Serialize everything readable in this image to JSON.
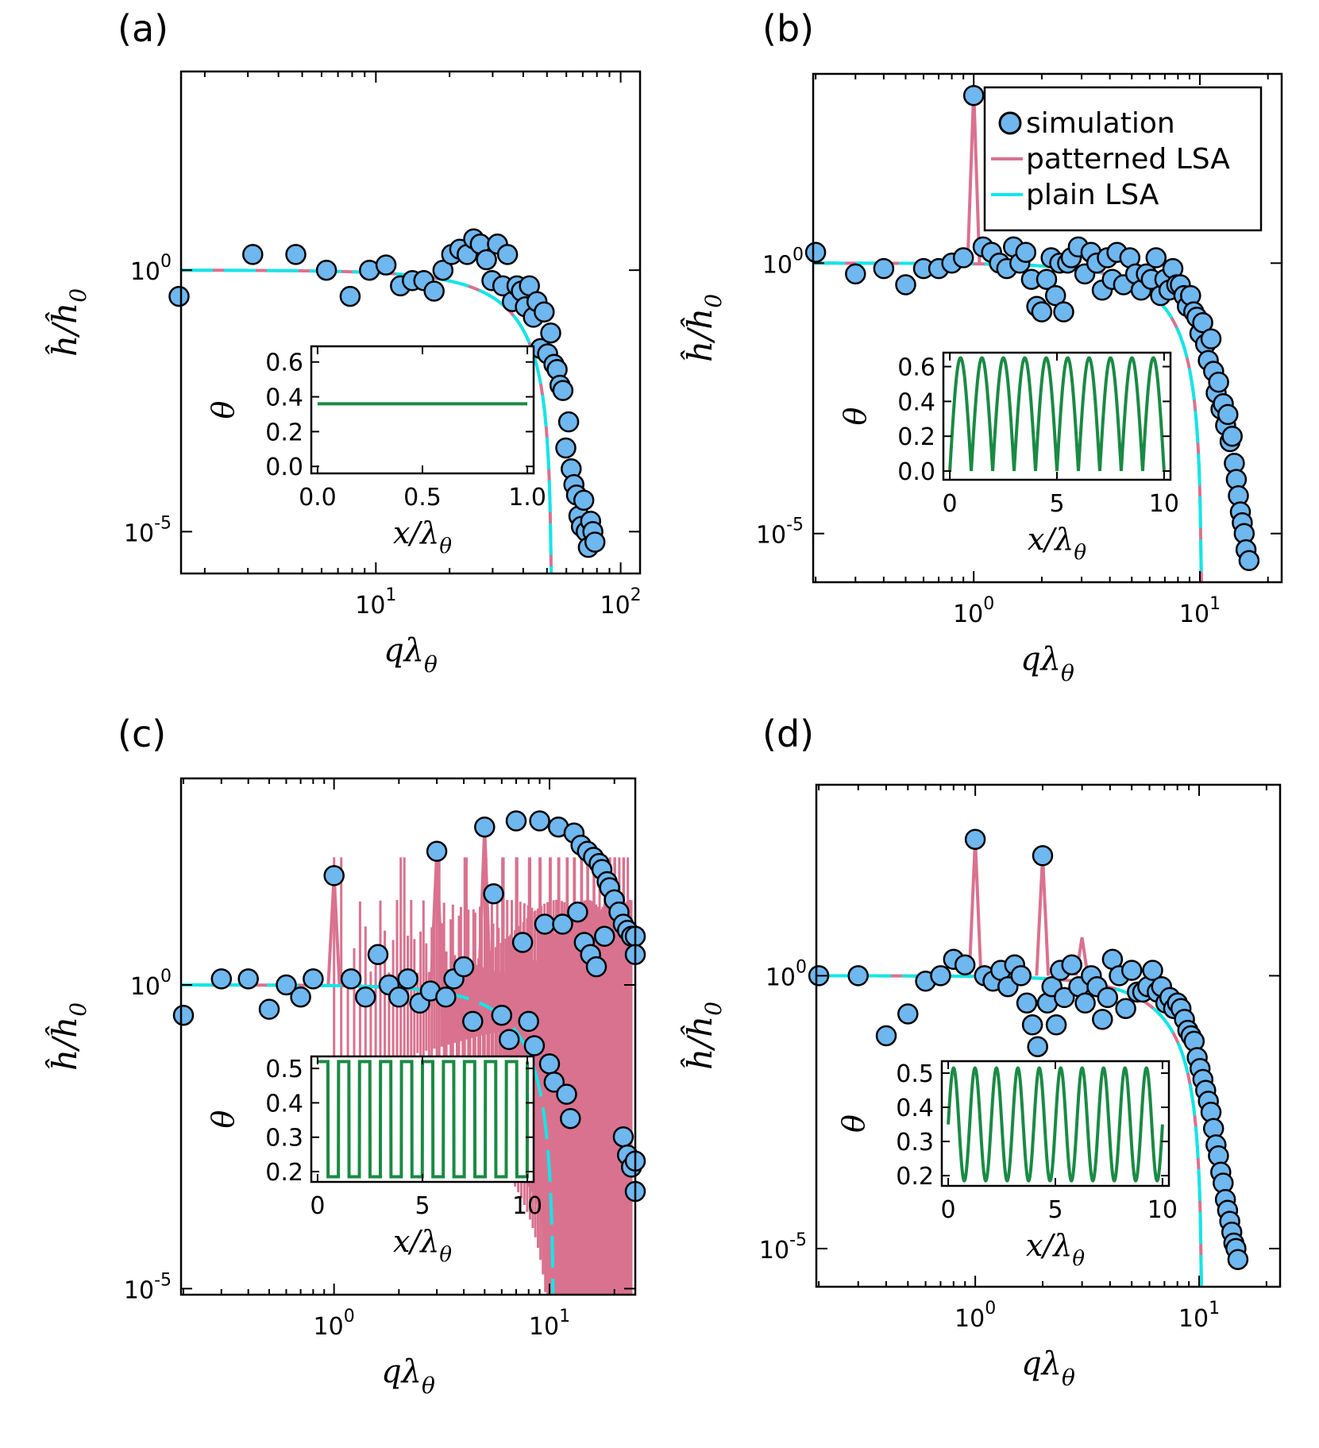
{
  "figure": {
    "panel_labels": [
      "(a)",
      "(b)",
      "(c)",
      "(d)"
    ],
    "legend": {
      "simulation": "simulation",
      "patterned": "patterned LSA",
      "plain": "plain LSA"
    },
    "colors": {
      "marker_fill": "#6fb7ef",
      "patterned": "#d9728f",
      "plain": "#10e7e9",
      "inset_line": "#1a8a44"
    }
  },
  "chart_data": [
    {
      "panel": "(a)",
      "type": "scatter",
      "xscale": "log",
      "yscale": "log",
      "xlabel": "qλ_θ",
      "ylabel": "ĥ/ĥ_0",
      "xlim": [
        1.6,
        120
      ],
      "ylim_log10": [
        -5.8,
        3.8
      ],
      "x_ticks": [
        {
          "v": 10,
          "l": "10^1"
        },
        {
          "v": 100,
          "l": "10^2"
        }
      ],
      "y_ticks": [
        {
          "e": 0,
          "l": "10^0"
        },
        {
          "e": -5,
          "l": "10^-5"
        }
      ],
      "plain_lsa": {
        "qc": 52.3,
        "kind": "plain"
      },
      "patterned_lsa": {
        "qc": 52.3,
        "kind": "plain"
      },
      "simulation_points": [
        [
          1.57,
          -0.5
        ],
        [
          3.14,
          0.3
        ],
        [
          4.71,
          0.3
        ],
        [
          6.28,
          0.0
        ],
        [
          7.85,
          -0.5
        ],
        [
          9.42,
          0.0
        ],
        [
          11.0,
          0.1
        ],
        [
          12.6,
          -0.3
        ],
        [
          14.1,
          -0.2
        ],
        [
          15.7,
          -0.2
        ],
        [
          17.3,
          -0.4
        ],
        [
          18.8,
          0.0
        ],
        [
          20.4,
          0.3
        ],
        [
          22.0,
          0.4
        ],
        [
          23.6,
          0.3
        ],
        [
          25.1,
          0.6
        ],
        [
          26.7,
          0.5
        ],
        [
          28.3,
          0.2
        ],
        [
          29.8,
          -0.2
        ],
        [
          31.4,
          0.5
        ],
        [
          33.0,
          -0.3
        ],
        [
          34.5,
          0.3
        ],
        [
          36.1,
          -0.6
        ],
        [
          37.7,
          -0.3
        ],
        [
          39.3,
          -0.4
        ],
        [
          40.8,
          -0.7
        ],
        [
          42.4,
          -0.3
        ],
        [
          44.0,
          -0.9
        ],
        [
          45.5,
          -0.6
        ],
        [
          47.1,
          -1.5
        ],
        [
          48.7,
          -0.8
        ],
        [
          50.3,
          -1.6
        ],
        [
          51.8,
          -1.2
        ],
        [
          53.4,
          -1.8
        ],
        [
          55.0,
          -1.9
        ],
        [
          56.5,
          -2.2
        ],
        [
          58.1,
          -2.3
        ],
        [
          59.7,
          -3.4
        ],
        [
          61.3,
          -2.9
        ],
        [
          62.8,
          -3.8
        ],
        [
          64.4,
          -4.1
        ],
        [
          66.0,
          -4.3
        ],
        [
          67.5,
          -4.7
        ],
        [
          69.1,
          -4.9
        ],
        [
          70.7,
          -4.4
        ],
        [
          72.3,
          -5.0
        ],
        [
          73.8,
          -5.3
        ],
        [
          75.4,
          -4.8
        ],
        [
          77.0,
          -5.0
        ],
        [
          78.5,
          -5.2
        ]
      ],
      "inset": {
        "ylabel": "θ",
        "xlabel": "x/λ_θ",
        "xlim": [
          -0.03,
          1.03
        ],
        "ylim": [
          -0.04,
          0.69
        ],
        "x_ticks": [
          0,
          0.5,
          1.0
        ],
        "x_tick_labels": [
          "0.0",
          "0.5",
          "1.0"
        ],
        "y_ticks": [
          0,
          0.2,
          0.4,
          0.6
        ],
        "y_tick_labels": [
          "0.0",
          "0.2",
          "0.4",
          "0.6"
        ],
        "function": {
          "kind": "const",
          "value": 0.36
        }
      }
    },
    {
      "panel": "(b)",
      "type": "scatter",
      "xscale": "log",
      "yscale": "log",
      "xlabel": "qλ_θ",
      "ylabel": "ĥ/ĥ_0",
      "xlim": [
        0.195,
        23
      ],
      "ylim_log10": [
        -5.9,
        3.5
      ],
      "x_ticks": [
        {
          "v": 1,
          "l": "10^0"
        },
        {
          "v": 10,
          "l": "10^1"
        }
      ],
      "y_ticks": [
        {
          "e": 0,
          "l": "10^0"
        },
        {
          "e": -5,
          "l": "10^-5"
        }
      ],
      "plain_lsa": {
        "qc": 10.2,
        "kind": "plain"
      },
      "patterned_lsa": {
        "qc": 10.2,
        "kind": "spikes",
        "spikes": [
          [
            1.0,
            3.2
          ]
        ]
      },
      "legend_entries": [
        "simulation",
        "patterned LSA",
        "plain LSA"
      ],
      "simulation_points": [
        [
          0.2,
          0.2
        ],
        [
          0.3,
          -0.2
        ],
        [
          0.4,
          -0.1
        ],
        [
          0.5,
          -0.4
        ],
        [
          0.6,
          -0.1
        ],
        [
          0.7,
          -0.1
        ],
        [
          0.8,
          0.0
        ],
        [
          0.9,
          0.1
        ],
        [
          1.0,
          3.1
        ],
        [
          1.1,
          0.3
        ],
        [
          1.2,
          0.2
        ],
        [
          1.3,
          0.0
        ],
        [
          1.4,
          -0.1
        ],
        [
          1.5,
          0.3
        ],
        [
          1.6,
          0.0
        ],
        [
          1.7,
          0.2
        ],
        [
          1.8,
          -0.3
        ],
        [
          1.9,
          -0.8
        ],
        [
          2.0,
          -0.9
        ],
        [
          2.1,
          -0.3
        ],
        [
          2.2,
          0.1
        ],
        [
          2.3,
          -0.6
        ],
        [
          2.4,
          0.0
        ],
        [
          2.5,
          -0.9
        ],
        [
          2.6,
          0.0
        ],
        [
          2.7,
          0.1
        ],
        [
          2.9,
          0.3
        ],
        [
          3.1,
          -0.2
        ],
        [
          3.3,
          0.2
        ],
        [
          3.5,
          0.0
        ],
        [
          3.7,
          -0.5
        ],
        [
          3.9,
          0.1
        ],
        [
          4.1,
          -0.3
        ],
        [
          4.3,
          0.2
        ],
        [
          4.6,
          -0.4
        ],
        [
          4.9,
          0.1
        ],
        [
          5.2,
          -0.2
        ],
        [
          5.5,
          -0.5
        ],
        [
          5.8,
          -0.2
        ],
        [
          6.1,
          -0.3
        ],
        [
          6.4,
          0.1
        ],
        [
          6.7,
          -0.6
        ],
        [
          7.0,
          -0.3
        ],
        [
          7.3,
          -0.5
        ],
        [
          7.6,
          -0.1
        ],
        [
          7.9,
          -0.4
        ],
        [
          8.2,
          -0.4
        ],
        [
          8.5,
          -0.6
        ],
        [
          8.8,
          -0.8
        ],
        [
          9.1,
          -0.6
        ],
        [
          9.4,
          -0.9
        ],
        [
          9.7,
          -1.0
        ],
        [
          10.0,
          -1.3
        ],
        [
          10.3,
          -1.1
        ],
        [
          10.6,
          -1.5
        ],
        [
          10.9,
          -1.8
        ],
        [
          11.2,
          -1.4
        ],
        [
          11.5,
          -2.0
        ],
        [
          11.8,
          -2.4
        ],
        [
          12.1,
          -2.2
        ],
        [
          12.4,
          -2.7
        ],
        [
          12.7,
          -2.6
        ],
        [
          13.0,
          -3.0
        ],
        [
          13.3,
          -2.8
        ],
        [
          13.6,
          -3.3
        ],
        [
          13.9,
          -3.2
        ],
        [
          14.2,
          -3.7
        ],
        [
          14.5,
          -4.0
        ],
        [
          14.8,
          -4.3
        ],
        [
          15.1,
          -4.6
        ],
        [
          15.4,
          -4.8
        ],
        [
          15.7,
          -5.0
        ],
        [
          16.0,
          -5.3
        ],
        [
          16.5,
          -5.5
        ]
      ],
      "inset": {
        "ylabel": "θ",
        "xlabel": "x/λ_θ",
        "xlim": [
          -0.3,
          10.3
        ],
        "ylim": [
          -0.05,
          0.68
        ],
        "x_ticks": [
          0,
          5,
          10
        ],
        "x_tick_labels": [
          "0",
          "5",
          "10"
        ],
        "y_ticks": [
          0,
          0.2,
          0.4,
          0.6
        ],
        "y_tick_labels": [
          "0.0",
          "0.2",
          "0.4",
          "0.6"
        ],
        "function": {
          "kind": "abs_cos",
          "amplitude": 0.65,
          "period": 1.0
        }
      }
    },
    {
      "panel": "(c)",
      "type": "scatter",
      "xscale": "log",
      "yscale": "log",
      "xlabel": "qλ_θ",
      "ylabel": "ĥ/ĥ_0",
      "xlim": [
        0.195,
        25
      ],
      "ylim_log10": [
        -5.1,
        3.4
      ],
      "x_ticks": [
        {
          "v": 1,
          "l": "10^0"
        },
        {
          "v": 10,
          "l": "10^1"
        }
      ],
      "y_ticks": [
        {
          "e": 0,
          "l": "10^0"
        },
        {
          "e": -5,
          "l": "10^-5"
        }
      ],
      "plain_lsa": {
        "qc": 10.5,
        "kind": "plain"
      },
      "patterned_lsa": {
        "qc": 10.5,
        "kind": "square",
        "spikes": [
          [
            1.0,
            1.8
          ],
          [
            3.0,
            2.2
          ],
          [
            5.0,
            2.6
          ]
        ]
      },
      "simulation_points": [
        [
          0.2,
          -0.5
        ],
        [
          0.3,
          0.1
        ],
        [
          0.4,
          0.1
        ],
        [
          0.5,
          -0.4
        ],
        [
          0.6,
          0.0
        ],
        [
          0.7,
          -0.2
        ],
        [
          0.8,
          0.1
        ],
        [
          1.0,
          1.8
        ],
        [
          1.2,
          0.1
        ],
        [
          1.4,
          -0.2
        ],
        [
          1.6,
          0.5
        ],
        [
          1.8,
          0.0
        ],
        [
          2.0,
          -0.2
        ],
        [
          2.2,
          0.1
        ],
        [
          2.5,
          -0.3
        ],
        [
          2.8,
          -0.1
        ],
        [
          3.0,
          2.2
        ],
        [
          3.3,
          -0.2
        ],
        [
          3.6,
          0.1
        ],
        [
          4.0,
          0.3
        ],
        [
          4.4,
          -0.6
        ],
        [
          5.0,
          2.6
        ],
        [
          5.5,
          1.5
        ],
        [
          6.0,
          -0.5
        ],
        [
          6.5,
          -0.9
        ],
        [
          7.0,
          2.7
        ],
        [
          7.5,
          0.7
        ],
        [
          8.0,
          -0.6
        ],
        [
          8.5,
          -1.0
        ],
        [
          9.0,
          2.7
        ],
        [
          9.5,
          1.0
        ],
        [
          10.0,
          -1.3
        ],
        [
          10.5,
          -1.6
        ],
        [
          11.0,
          2.6
        ],
        [
          11.5,
          1.0
        ],
        [
          12.0,
          -1.8
        ],
        [
          12.5,
          -2.2
        ],
        [
          13.0,
          2.5
        ],
        [
          13.5,
          1.2
        ],
        [
          14.0,
          2.3
        ],
        [
          14.5,
          0.7
        ],
        [
          15.0,
          2.2
        ],
        [
          15.5,
          0.5
        ],
        [
          16.0,
          2.1
        ],
        [
          16.5,
          0.3
        ],
        [
          17.0,
          2.0
        ],
        [
          17.5,
          1.9
        ],
        [
          18.0,
          0.8
        ],
        [
          18.5,
          1.7
        ],
        [
          19.0,
          1.6
        ],
        [
          20.0,
          1.4
        ],
        [
          21.0,
          1.2
        ],
        [
          22.0,
          1.0
        ],
        [
          23.0,
          0.9
        ],
        [
          24.0,
          0.8
        ],
        [
          25.0,
          0.8
        ],
        [
          22.0,
          -2.5
        ],
        [
          23.0,
          -2.8
        ],
        [
          24.0,
          -3.0
        ],
        [
          25.0,
          -2.9
        ],
        [
          25.0,
          -3.4
        ],
        [
          25.0,
          0.5
        ]
      ],
      "inset": {
        "ylabel": "θ",
        "xlabel": "x/λ_θ",
        "xlim": [
          -0.3,
          10.3
        ],
        "ylim": [
          0.17,
          0.535
        ],
        "x_ticks": [
          0,
          5,
          10
        ],
        "x_tick_labels": [
          "0",
          "5",
          "10"
        ],
        "y_ticks": [
          0.2,
          0.3,
          0.4,
          0.5
        ],
        "y_tick_labels": [
          "0.2",
          "0.3",
          "0.4",
          "0.5"
        ],
        "function": {
          "kind": "square",
          "low": 0.185,
          "high": 0.52,
          "period": 1.0
        }
      }
    },
    {
      "panel": "(d)",
      "type": "scatter",
      "xscale": "log",
      "yscale": "log",
      "xlabel": "qλ_θ",
      "ylabel": "ĥ/ĥ_0",
      "xlim": [
        0.195,
        23
      ],
      "ylim_log10": [
        -5.7,
        3.5
      ],
      "x_ticks": [
        {
          "v": 1,
          "l": "10^0"
        },
        {
          "v": 10,
          "l": "10^1"
        }
      ],
      "y_ticks": [
        {
          "e": 0,
          "l": "10^0"
        },
        {
          "e": -5,
          "l": "10^-5"
        }
      ],
      "plain_lsa": {
        "qc": 10.3,
        "kind": "plain"
      },
      "patterned_lsa": {
        "qc": 10.3,
        "kind": "spikes",
        "spikes": [
          [
            1.0,
            2.5
          ],
          [
            2.0,
            2.2
          ],
          [
            3.0,
            0.7
          ]
        ]
      },
      "simulation_points": [
        [
          0.2,
          0.0
        ],
        [
          0.3,
          0.0
        ],
        [
          0.4,
          -1.1
        ],
        [
          0.5,
          -0.7
        ],
        [
          0.6,
          -0.1
        ],
        [
          0.7,
          0.0
        ],
        [
          0.8,
          0.3
        ],
        [
          0.9,
          0.2
        ],
        [
          1.0,
          2.5
        ],
        [
          1.1,
          0.0
        ],
        [
          1.2,
          -0.1
        ],
        [
          1.3,
          0.1
        ],
        [
          1.4,
          -0.2
        ],
        [
          1.5,
          0.2
        ],
        [
          1.6,
          0.0
        ],
        [
          1.7,
          -0.5
        ],
        [
          1.8,
          -0.9
        ],
        [
          1.9,
          -1.3
        ],
        [
          2.0,
          2.2
        ],
        [
          2.1,
          -0.5
        ],
        [
          2.2,
          -0.2
        ],
        [
          2.3,
          -0.9
        ],
        [
          2.4,
          0.1
        ],
        [
          2.5,
          -0.4
        ],
        [
          2.7,
          0.2
        ],
        [
          2.9,
          -0.2
        ],
        [
          3.1,
          -0.5
        ],
        [
          3.3,
          0.0
        ],
        [
          3.5,
          -0.2
        ],
        [
          3.7,
          -0.8
        ],
        [
          3.9,
          -0.4
        ],
        [
          4.1,
          0.3
        ],
        [
          4.4,
          0.0
        ],
        [
          4.7,
          -0.6
        ],
        [
          5.0,
          0.1
        ],
        [
          5.3,
          -0.3
        ],
        [
          5.6,
          -0.3
        ],
        [
          5.9,
          -0.2
        ],
        [
          6.2,
          0.1
        ],
        [
          6.5,
          -0.3
        ],
        [
          6.8,
          -0.2
        ],
        [
          7.1,
          -0.5
        ],
        [
          7.4,
          -0.4
        ],
        [
          7.7,
          -0.6
        ],
        [
          8.0,
          -0.5
        ],
        [
          8.3,
          -0.6
        ],
        [
          8.6,
          -0.8
        ],
        [
          8.9,
          -1.0
        ],
        [
          9.2,
          -1.1
        ],
        [
          9.5,
          -1.2
        ],
        [
          9.8,
          -1.5
        ],
        [
          10.1,
          -1.7
        ],
        [
          10.4,
          -1.9
        ],
        [
          10.7,
          -2.1
        ],
        [
          11.0,
          -2.3
        ],
        [
          11.3,
          -2.5
        ],
        [
          11.6,
          -2.8
        ],
        [
          11.9,
          -3.1
        ],
        [
          12.2,
          -3.3
        ],
        [
          12.5,
          -3.6
        ],
        [
          12.8,
          -3.8
        ],
        [
          13.1,
          -4.1
        ],
        [
          13.4,
          -4.3
        ],
        [
          13.7,
          -4.5
        ],
        [
          14.0,
          -4.7
        ],
        [
          14.3,
          -4.9
        ],
        [
          14.6,
          -5.0
        ],
        [
          14.9,
          -5.2
        ]
      ],
      "inset": {
        "ylabel": "θ",
        "xlabel": "x/λ_θ",
        "xlim": [
          -0.3,
          10.3
        ],
        "ylim": [
          0.17,
          0.535
        ],
        "x_ticks": [
          0,
          5,
          10
        ],
        "x_tick_labels": [
          "0",
          "5",
          "10"
        ],
        "y_ticks": [
          0.2,
          0.3,
          0.4,
          0.5
        ],
        "y_tick_labels": [
          "0.2",
          "0.3",
          "0.4",
          "0.5"
        ],
        "function": {
          "kind": "sin",
          "mean": 0.35,
          "amplitude": 0.165,
          "period": 1.0
        }
      }
    }
  ]
}
